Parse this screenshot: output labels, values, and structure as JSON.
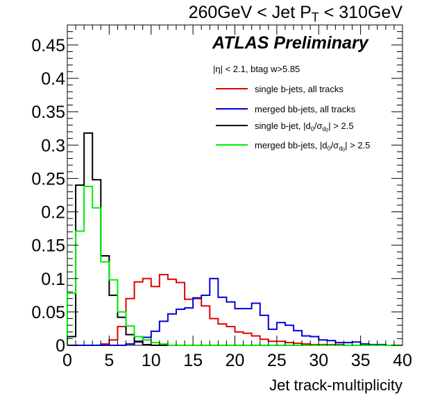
{
  "chart_data": {
    "type": "histogram",
    "title_parts": [
      "260GeV < Jet P",
      "T",
      " < 310GeV"
    ],
    "xlabel": "Jet track-multiplicity",
    "ylabel": "",
    "xlim": [
      0,
      40
    ],
    "ylim": [
      0,
      0.48
    ],
    "x_tick_labels": [
      "0",
      "5",
      "10",
      "15",
      "20",
      "25",
      "30",
      "35",
      "40"
    ],
    "y_tick_labels": [
      "0",
      "0.05",
      "0.1",
      "0.15",
      "0.2",
      "0.25",
      "0.3",
      "0.35",
      "0.4",
      "0.45"
    ],
    "annotation": "ATLAS Preliminary",
    "selection_note": "|η| < 2.1, btag w>5.85",
    "legend_location": "top-right",
    "bin_edges_start": 0,
    "bin_width": 1,
    "series": [
      {
        "name": "single b-jets, all tracks",
        "color": "#e00000",
        "values": [
          0,
          0,
          0,
          0,
          0.002,
          0.008,
          0.028,
          0.07,
          0.095,
          0.1,
          0.088,
          0.106,
          0.099,
          0.094,
          0.069,
          0.07,
          0.059,
          0.04,
          0.032,
          0.028,
          0.02,
          0.018,
          0.014,
          0.009,
          0.006,
          0.006,
          0.004,
          0.003,
          0.002,
          0.001,
          0.001,
          0.001,
          0.001,
          0,
          0,
          0,
          0,
          0,
          0,
          0
        ]
      },
      {
        "name": "merged bb-jets, all tracks",
        "color": "#0000dd",
        "values": [
          0,
          0,
          0,
          0,
          0,
          0,
          0,
          0.002,
          0.005,
          0.012,
          0.021,
          0.036,
          0.047,
          0.054,
          0.056,
          0.071,
          0.075,
          0.1,
          0.072,
          0.065,
          0.055,
          0.055,
          0.063,
          0.045,
          0.024,
          0.034,
          0.03,
          0.022,
          0.014,
          0.013,
          0.008,
          0.007,
          0.004,
          0.004,
          0.005,
          0.002,
          0.001,
          0.001,
          0,
          0
        ]
      },
      {
        "name_parts": [
          "single b-jet, |d",
          "0",
          "/σ",
          "d",
          "0",
          "| > 2.5"
        ],
        "color": "#000000",
        "values": [
          0.013,
          0.24,
          0.318,
          0.248,
          0.134,
          0.075,
          0.042,
          0.016,
          0.006,
          0.001,
          0,
          0,
          0,
          0,
          0,
          0,
          0,
          0,
          0,
          0,
          0,
          0,
          0,
          0,
          0,
          0,
          0,
          0,
          0,
          0,
          0,
          0,
          0,
          0,
          0,
          0,
          0,
          0,
          0,
          0
        ]
      },
      {
        "name_parts": [
          "merged bb-jets, |d",
          "0",
          "/σ",
          "d",
          "0",
          "| > 2.5"
        ],
        "color": "#00ee00",
        "values": [
          0.078,
          0.171,
          0.238,
          0.206,
          0.125,
          0.098,
          0.05,
          0.029,
          0.013,
          0.008,
          0.004,
          0.002,
          0,
          0,
          0,
          0,
          0,
          0,
          0,
          0,
          0,
          0,
          0,
          0,
          0,
          0,
          0,
          0,
          0,
          0,
          0,
          0,
          0,
          0,
          0,
          0,
          0,
          0,
          0,
          0
        ]
      }
    ]
  }
}
